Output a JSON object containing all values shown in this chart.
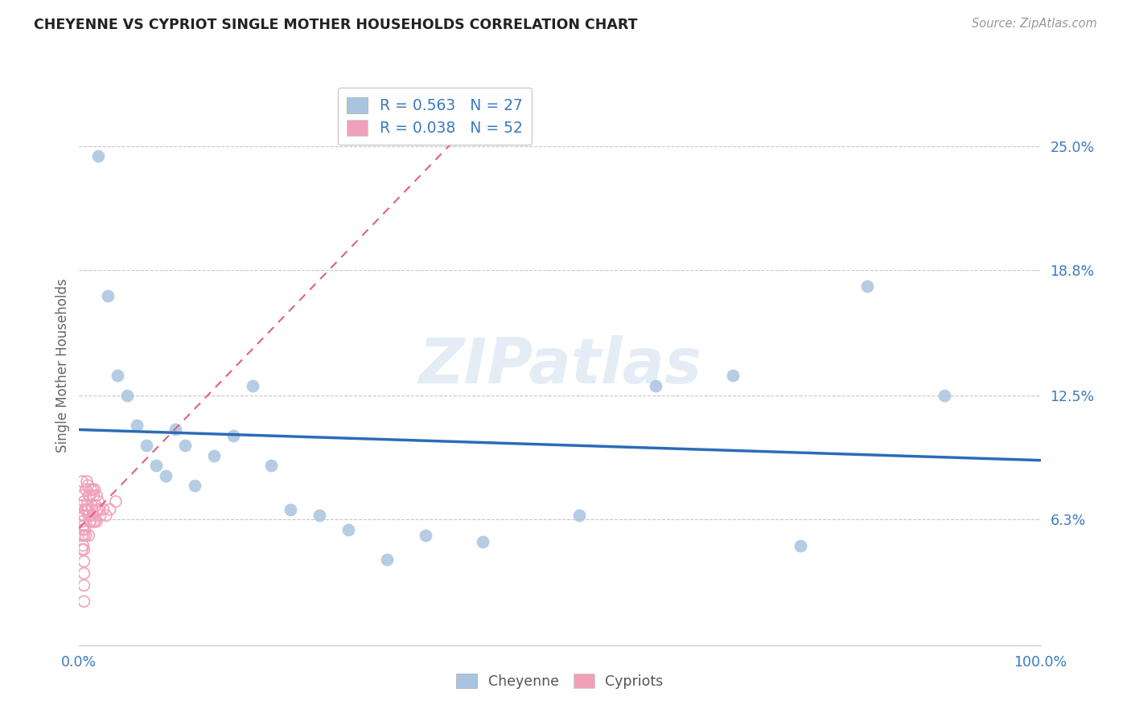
{
  "title": "CHEYENNE VS CYPRIOT SINGLE MOTHER HOUSEHOLDS CORRELATION CHART",
  "source": "Source: ZipAtlas.com",
  "ylabel": "Single Mother Households",
  "xlim": [
    0.0,
    1.0
  ],
  "ylim": [
    0.0,
    0.28
  ],
  "yticks": [
    0.0,
    0.063,
    0.125,
    0.188,
    0.25
  ],
  "ytick_labels": [
    "",
    "6.3%",
    "12.5%",
    "18.8%",
    "25.0%"
  ],
  "xtick_labels": [
    "0.0%",
    "",
    "",
    "",
    "",
    "100.0%"
  ],
  "bg_color": "#ffffff",
  "grid_color": "#c8c8c8",
  "cheyenne_dot_color": "#a8c4e0",
  "cypriot_edge_color": "#f0a0b8",
  "cheyenne_line_color": "#2b6cb8",
  "cypriot_line_color": "#e06080",
  "label_color": "#3a7abf",
  "watermark": "ZIPatlas",
  "R_cheyenne": 0.563,
  "N_cheyenne": 27,
  "R_cypriot": 0.038,
  "N_cypriot": 52,
  "cheyenne_x": [
    0.02,
    0.03,
    0.04,
    0.05,
    0.06,
    0.07,
    0.08,
    0.09,
    0.1,
    0.11,
    0.12,
    0.14,
    0.16,
    0.18,
    0.2,
    0.22,
    0.25,
    0.28,
    0.32,
    0.36,
    0.42,
    0.52,
    0.6,
    0.68,
    0.75,
    0.82,
    0.9
  ],
  "cheyenne_y": [
    0.245,
    0.175,
    0.135,
    0.125,
    0.11,
    0.1,
    0.09,
    0.085,
    0.108,
    0.1,
    0.08,
    0.095,
    0.105,
    0.13,
    0.09,
    0.068,
    0.065,
    0.058,
    0.043,
    0.055,
    0.052,
    0.065,
    0.13,
    0.135,
    0.05,
    0.18,
    0.125
  ],
  "cypriot_x": [
    0.003,
    0.003,
    0.003,
    0.003,
    0.003,
    0.004,
    0.004,
    0.004,
    0.004,
    0.005,
    0.005,
    0.005,
    0.005,
    0.005,
    0.005,
    0.005,
    0.005,
    0.005,
    0.006,
    0.006,
    0.007,
    0.007,
    0.007,
    0.008,
    0.008,
    0.009,
    0.009,
    0.01,
    0.01,
    0.01,
    0.011,
    0.011,
    0.012,
    0.012,
    0.013,
    0.014,
    0.014,
    0.015,
    0.015,
    0.016,
    0.016,
    0.017,
    0.018,
    0.018,
    0.019,
    0.02,
    0.021,
    0.022,
    0.025,
    0.028,
    0.032,
    0.038
  ],
  "cypriot_y": [
    0.082,
    0.07,
    0.062,
    0.055,
    0.048,
    0.075,
    0.065,
    0.058,
    0.05,
    0.072,
    0.065,
    0.06,
    0.055,
    0.048,
    0.042,
    0.036,
    0.03,
    0.022,
    0.068,
    0.058,
    0.078,
    0.068,
    0.055,
    0.082,
    0.07,
    0.08,
    0.068,
    0.075,
    0.065,
    0.055,
    0.075,
    0.062,
    0.078,
    0.062,
    0.07,
    0.078,
    0.065,
    0.075,
    0.062,
    0.078,
    0.062,
    0.07,
    0.075,
    0.062,
    0.068,
    0.072,
    0.068,
    0.065,
    0.068,
    0.065,
    0.068,
    0.072
  ]
}
